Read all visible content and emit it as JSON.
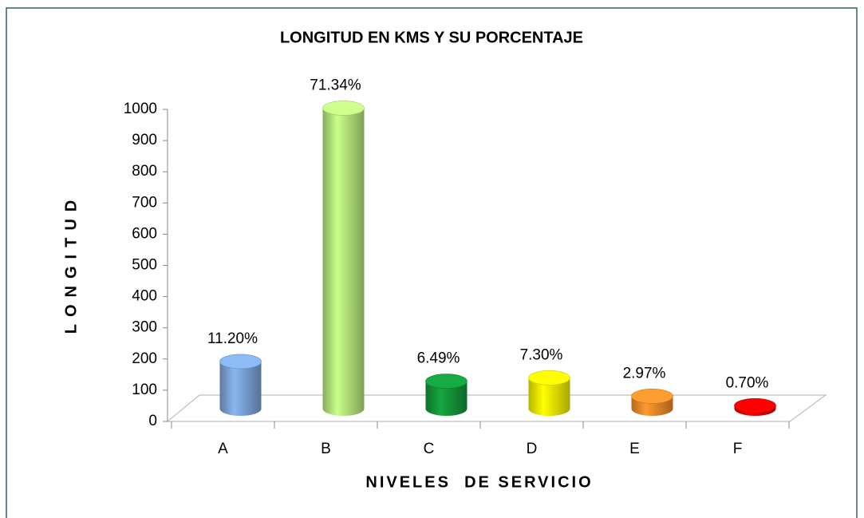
{
  "chart_data": {
    "type": "bar3d",
    "title": "LONGITUD EN KMS Y SU PORCENTAJE",
    "x_label": "NIVELES  DE SERVICIO",
    "y_label": "LONGITUD",
    "categories": [
      "A",
      "B",
      "C",
      "D",
      "E",
      "F"
    ],
    "values": [
      151,
      963,
      88,
      99,
      40,
      9.5
    ],
    "annotations": [
      "11.20%",
      "71.34%",
      "6.49%",
      "7.30%",
      "2.97%",
      "0.70%"
    ],
    "colors": [
      "#7ba3d6",
      "#b4e67a",
      "#14953a",
      "#f2ee00",
      "#f0892a",
      "#e00000"
    ],
    "ylim": [
      0,
      1000
    ],
    "yticks": [
      0,
      100,
      200,
      300,
      400,
      500,
      600,
      700,
      800,
      900,
      1000
    ]
  }
}
